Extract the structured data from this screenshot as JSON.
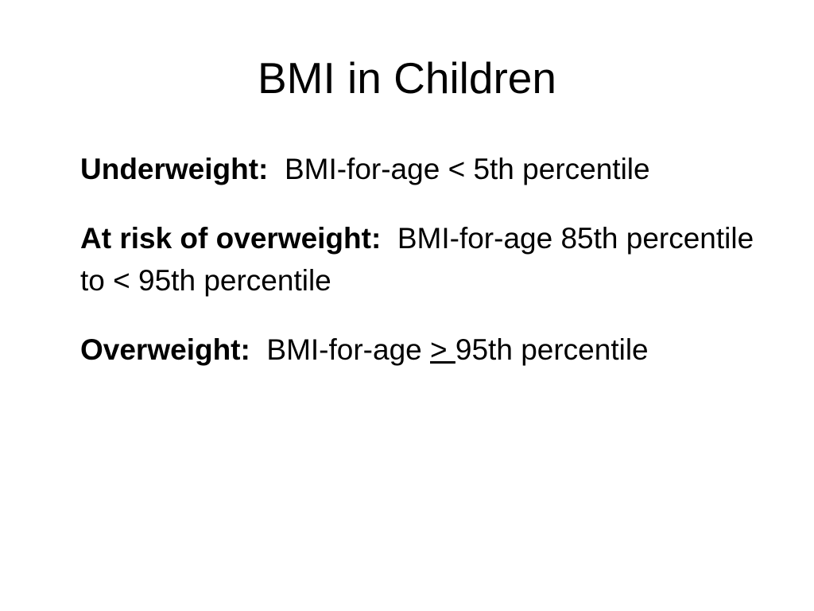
{
  "slide": {
    "title": "BMI in Children",
    "items": [
      {
        "term": "Underweight:",
        "definition": "BMI-for-age < 5th percentile"
      },
      {
        "term": "At risk of overweight:",
        "definition": "BMI-for-age 85th percentile to < 95th percentile"
      },
      {
        "term": "Overweight:",
        "definition_before": "BMI-for-age",
        "definition_symbol": "> ",
        "definition_after": "95th percentile"
      }
    ]
  }
}
